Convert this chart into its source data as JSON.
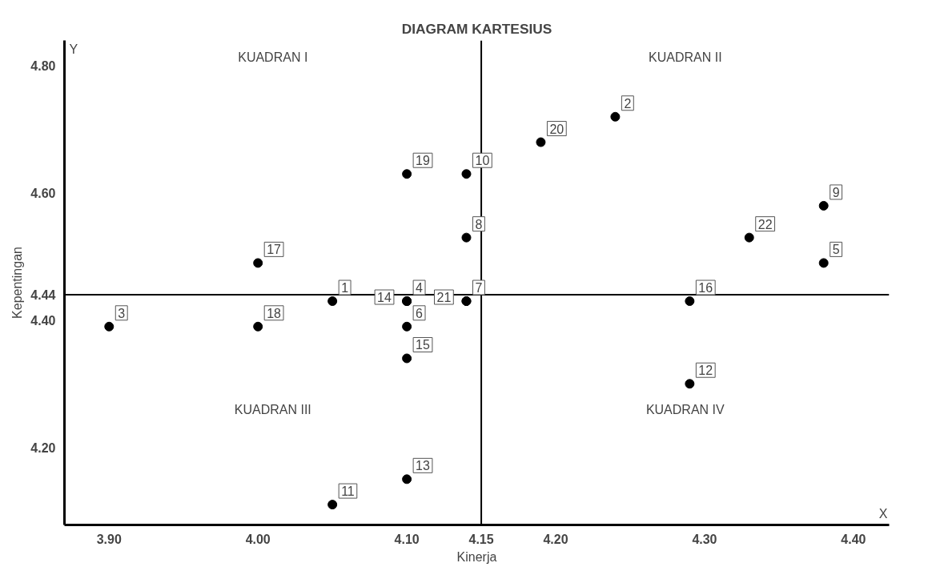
{
  "chart_data": {
    "type": "scatter",
    "title": "DIAGRAM KARTESIUS",
    "xlabel": "Kinerja",
    "ylabel": "Kepentingan",
    "x": [
      4.05,
      4.24,
      3.9,
      4.1,
      4.38,
      4.1,
      4.14,
      4.14,
      4.38,
      4.14,
      4.05,
      4.29,
      4.1,
      4.1,
      4.1,
      4.29,
      4.0,
      4.0,
      4.1,
      4.19,
      4.14,
      4.33
    ],
    "series": [
      {
        "color": "#000000",
        "values": [
          4.43,
          4.72,
          4.39,
          4.43,
          4.49,
          4.39,
          4.43,
          4.53,
          4.58,
          4.63,
          4.11,
          4.3,
          4.15,
          4.43,
          4.34,
          4.43,
          4.49,
          4.39,
          4.63,
          4.68,
          4.43,
          4.53
        ]
      }
    ],
    "marker": "circle",
    "xlim": [
      3.87,
      4.424
    ],
    "ylim": [
      4.078,
      4.84
    ],
    "xticks": [
      {
        "value": 3.9,
        "label": "3.90"
      },
      {
        "value": 4.0,
        "label": "4.00"
      },
      {
        "value": 4.1,
        "label": "4.10"
      },
      4.15,
      {
        "value": 4.2,
        "label": "4.20"
      },
      {
        "value": 4.3,
        "label": "4.30"
      },
      {
        "value": 4.4,
        "label": "4.40"
      }
    ],
    "yticks": [
      {
        "value": 4.2,
        "label": "4.20"
      },
      {
        "value": 4.4,
        "label": "4.40"
      },
      4.44,
      {
        "value": 4.6,
        "label": "4.60"
      },
      {
        "value": 4.8,
        "label": "4.80"
      }
    ],
    "ref_lines": [
      {
        "axis": "x",
        "value": 4.15,
        "color": "#000000"
      },
      {
        "axis": "y",
        "value": 4.44,
        "color": "#000000"
      }
    ],
    "grid": false,
    "annotations": [
      "KUADRAN I",
      "KUADRAN II",
      "KUADRAN III",
      "KUADRAN IV",
      "Y",
      "X",
      {
        "text": "1",
        "x": 4.05,
        "y": 4.43
      },
      {
        "text": "2",
        "x": 4.24,
        "y": 4.72
      },
      {
        "text": "3",
        "x": 3.9,
        "y": 4.39
      },
      {
        "text": "4",
        "x": 4.1,
        "y": 4.43
      },
      {
        "text": "5",
        "x": 4.38,
        "y": 4.49
      },
      {
        "text": "6",
        "x": 4.1,
        "y": 4.39
      },
      {
        "text": "7",
        "x": 4.14,
        "y": 4.43
      },
      {
        "text": "8",
        "x": 4.14,
        "y": 4.53
      },
      {
        "text": "9",
        "x": 4.38,
        "y": 4.58
      },
      {
        "text": "10",
        "x": 4.14,
        "y": 4.63
      },
      {
        "text": "11",
        "x": 4.05,
        "y": 4.11
      },
      {
        "text": "12",
        "x": 4.29,
        "y": 4.3
      },
      {
        "text": "13",
        "x": 4.1,
        "y": 4.15
      },
      {
        "text": "14",
        "x": 4.1,
        "y": 4.43
      },
      {
        "text": "15",
        "x": 4.1,
        "y": 4.34
      },
      {
        "text": "16",
        "x": 4.29,
        "y": 4.43
      },
      {
        "text": "17",
        "x": 4.0,
        "y": 4.49
      },
      {
        "text": "18",
        "x": 4.0,
        "y": 4.39
      },
      {
        "text": "19",
        "x": 4.1,
        "y": 4.63
      },
      {
        "text": "20",
        "x": 4.19,
        "y": 4.68
      },
      {
        "text": "21",
        "x": 4.14,
        "y": 4.43
      },
      {
        "text": "22",
        "x": 4.33,
        "y": 4.53
      }
    ]
  }
}
